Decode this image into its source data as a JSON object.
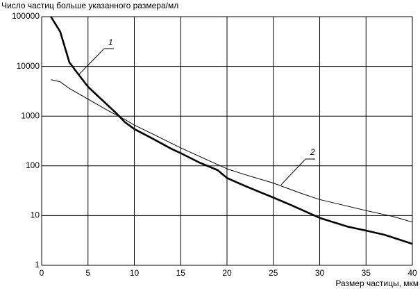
{
  "chart_data": {
    "type": "line",
    "y_label": "Число частиц больше указанного размера/мл",
    "x_label": "Размер частицы, мкм",
    "log_y": true,
    "grid": true,
    "xlim": [
      0,
      40
    ],
    "xticks": [
      0,
      5,
      10,
      15,
      20,
      25,
      30,
      35,
      40
    ],
    "ylim": [
      1,
      100000
    ],
    "yticks": [
      1,
      10,
      100,
      1000,
      10000,
      100000
    ],
    "series": [
      {
        "name": "1",
        "color": "#000000",
        "x": [
          1,
          2,
          3,
          4,
          5,
          6,
          7,
          8,
          9,
          10,
          12,
          14,
          15,
          17,
          19,
          20,
          22,
          25,
          27,
          30,
          33,
          35,
          37,
          40
        ],
        "values": [
          100000,
          50000,
          12000,
          6800,
          3900,
          2600,
          1750,
          1170,
          750,
          550,
          350,
          220,
          180,
          117,
          82,
          57,
          39,
          23,
          16,
          9,
          6,
          5,
          4.1,
          2.7
        ]
      },
      {
        "name": "2",
        "color": "#000000",
        "x": [
          1,
          2,
          3,
          5,
          7,
          9,
          10,
          12,
          15,
          18,
          20,
          22,
          25,
          28,
          30,
          33,
          35,
          38,
          40
        ],
        "values": [
          5400,
          4900,
          3600,
          2200,
          1350,
          850,
          660,
          435,
          230,
          128,
          87,
          66,
          45,
          28,
          21,
          15.5,
          12.6,
          9.5,
          7.4
        ]
      }
    ]
  }
}
